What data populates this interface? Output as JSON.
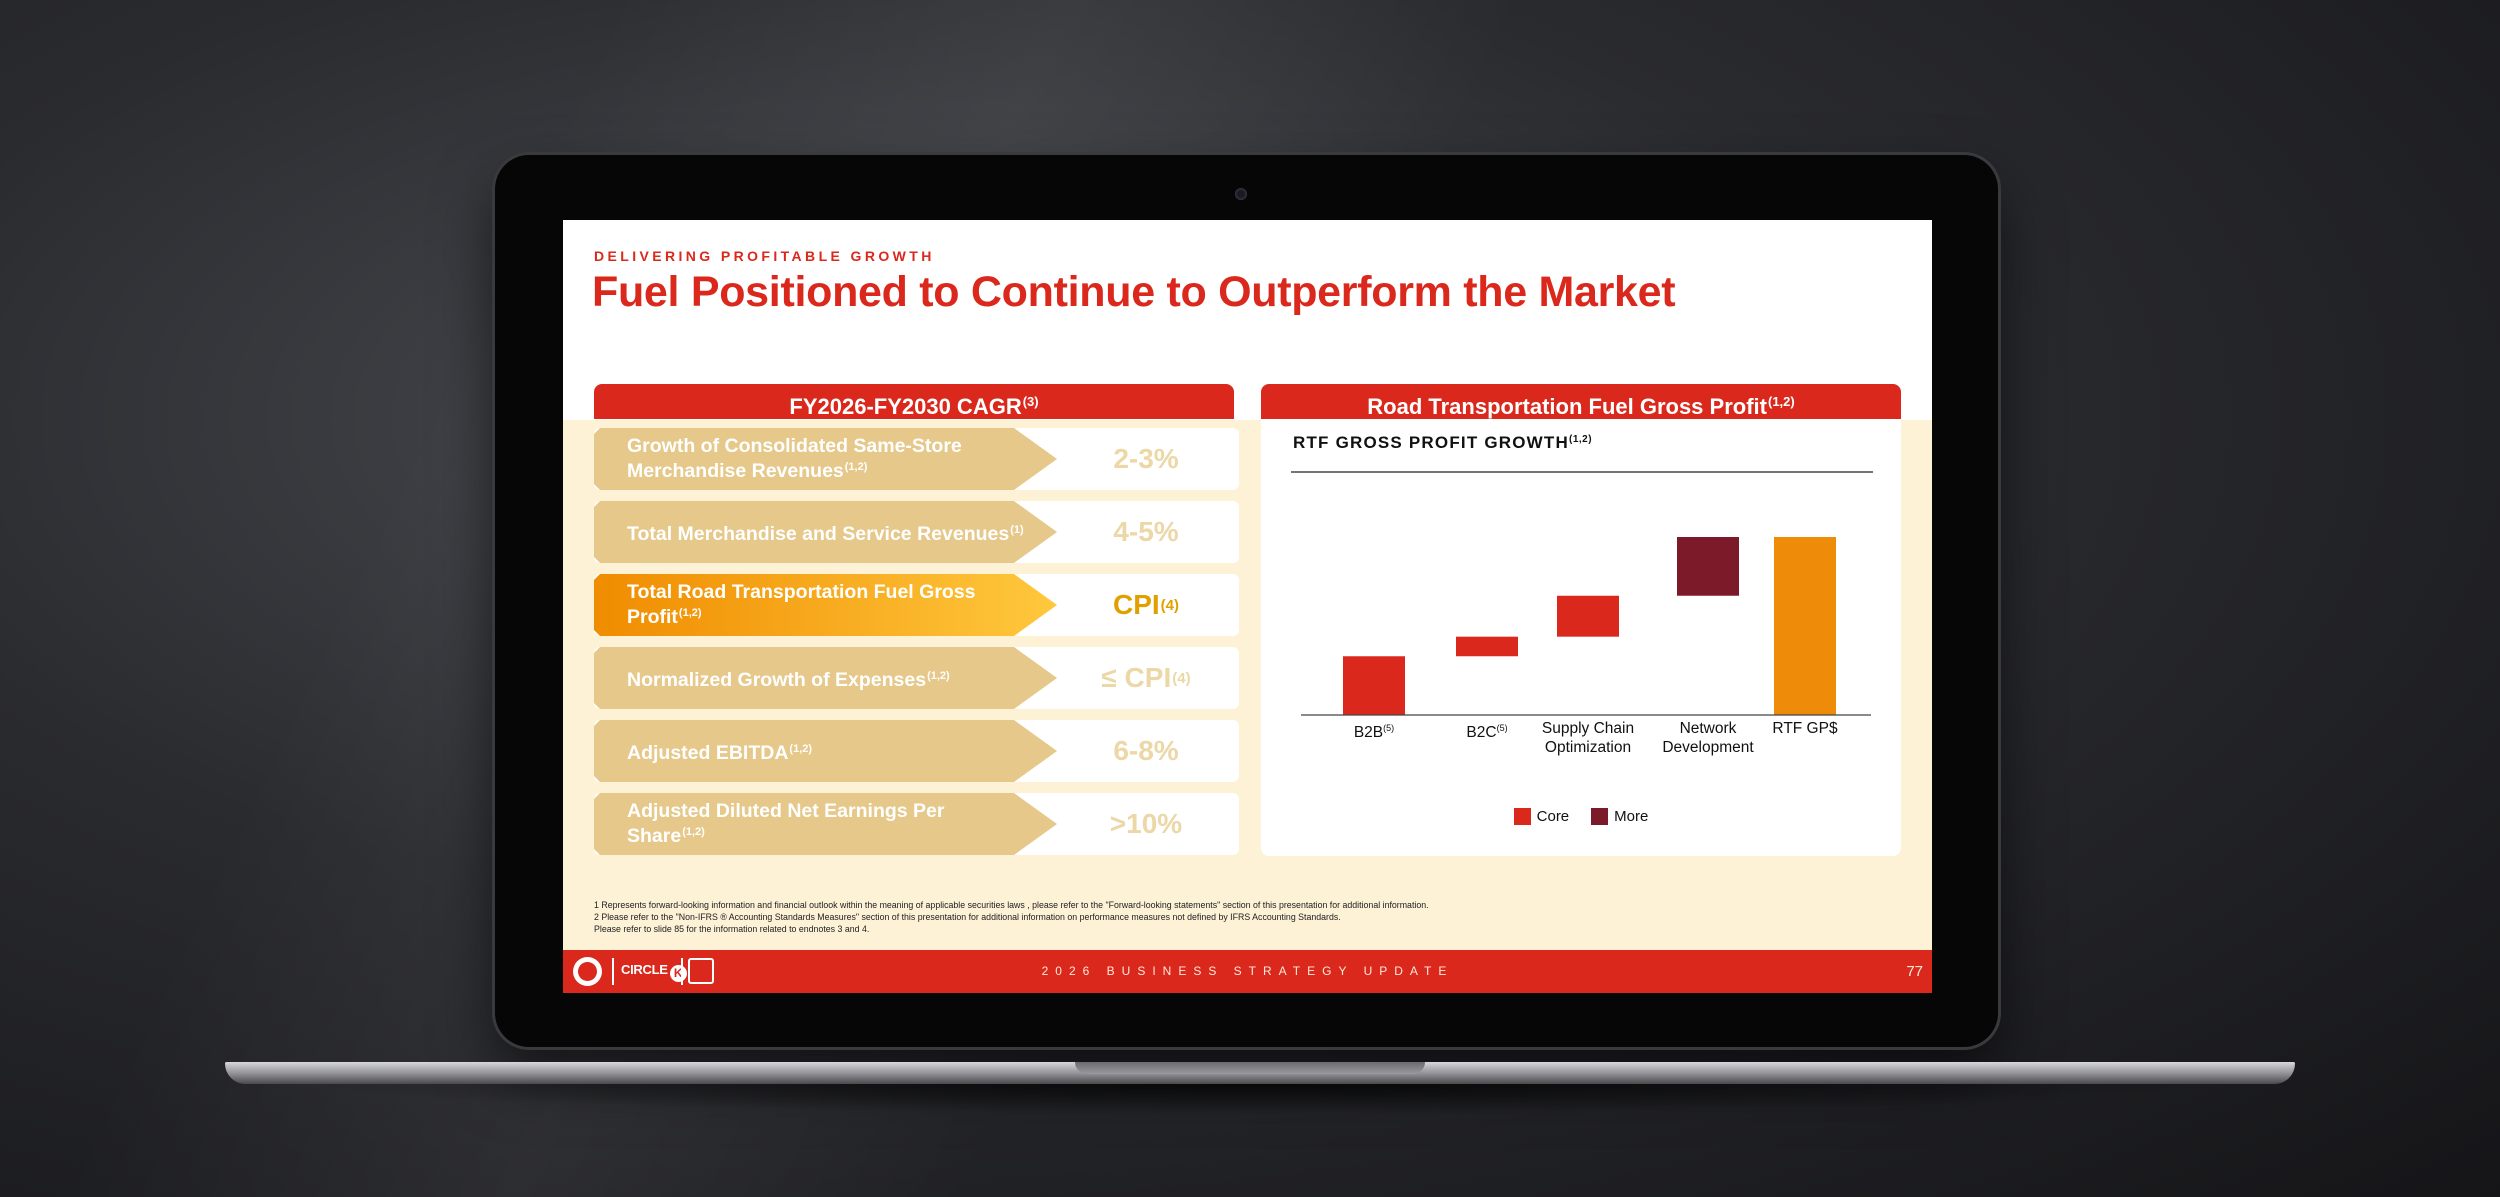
{
  "slide": {
    "kicker": "DELIVERING PROFITABLE GROWTH",
    "title": "Fuel Positioned to Continue to Outperform the Market",
    "left_panel": {
      "title": "FY2026-FY2030 CAGR",
      "title_note": "(3)",
      "metrics": [
        {
          "label": "Growth of Consolidated Same-Store Merchandise Revenues",
          "note": "(1,2)",
          "value": "2-3%",
          "value_note": "",
          "highlighted": false
        },
        {
          "label": "Total Merchandise and Service Revenues",
          "note": "(1)",
          "value": "4-5%",
          "value_note": "",
          "highlighted": false
        },
        {
          "label": "Total Road Transportation Fuel Gross Profit",
          "note": "(1,2)",
          "value": "CPI",
          "value_note": "(4)",
          "highlighted": true
        },
        {
          "label": "Normalized Growth of Expenses",
          "note": "(1,2)",
          "value": "≤ CPI",
          "value_note": "(4)",
          "highlighted": false
        },
        {
          "label": "Adjusted EBITDA",
          "note": "(1,2)",
          "value": "6-8%",
          "value_note": "",
          "highlighted": false
        },
        {
          "label": "Adjusted Diluted Net Earnings Per Share",
          "note": "(1,2)",
          "value": ">10%",
          "value_note": "",
          "highlighted": false
        }
      ]
    },
    "right_panel": {
      "title": "Road Transportation Fuel Gross Profit",
      "title_note": "(1,2)"
    },
    "footnotes": [
      "1  Represents forward-looking information and financial outlook within the meaning of applicable securities laws , please refer to the \"Forward-looking statements\" section of this presentation for additional information.",
      "2  Please refer to the \"Non-IFRS ® Accounting Standards Measures\" section of this presentation for additional information on performance measures not defined by IFRS Accounting Standards.",
      "Please refer to slide 85 for the information related to endnotes 3 and 4."
    ],
    "footer": {
      "text": "2026 BUSINESS STRATEGY UPDATE",
      "page_number": "77",
      "logo_text": "CIRCLE",
      "logo_k": "K"
    }
  },
  "colors": {
    "brand_red": "#da291c",
    "more": "#7c1a2a",
    "total": "#ee8c0a",
    "cream": "#fdf1d6",
    "arrow_tan": "#e5c88a",
    "highlight_orange": "#f08c00"
  },
  "chart_data": {
    "type": "bar",
    "subtype": "waterfall",
    "title": "RTF GROSS PROFIT GROWTH",
    "title_note": "(1,2)",
    "categories": [
      {
        "label": "B2B",
        "note": "(5)"
      },
      {
        "label": "B2C",
        "note": "(5)"
      },
      {
        "label": "Supply Chain Optimization",
        "note": ""
      },
      {
        "label": "Network Development",
        "note": ""
      },
      {
        "label": "RTF GP$",
        "note": ""
      }
    ],
    "steps": [
      {
        "category": "B2B",
        "start": 0,
        "end": 0.33,
        "series": "Core"
      },
      {
        "category": "B2C",
        "start": 0.33,
        "end": 0.44,
        "series": "Core"
      },
      {
        "category": "Supply Chain Optimization",
        "start": 0.44,
        "end": 0.67,
        "series": "Core"
      },
      {
        "category": "Network Development",
        "start": 0.67,
        "end": 1.0,
        "series": "More"
      },
      {
        "category": "RTF GP$",
        "start": 0,
        "end": 1.0,
        "series": "Total"
      }
    ],
    "legend": [
      {
        "name": "Core",
        "color": "#da291c"
      },
      {
        "name": "More",
        "color": "#7c1a2a"
      }
    ],
    "legend_position": "bottom",
    "y_axis_visible": false,
    "grid": false
  }
}
